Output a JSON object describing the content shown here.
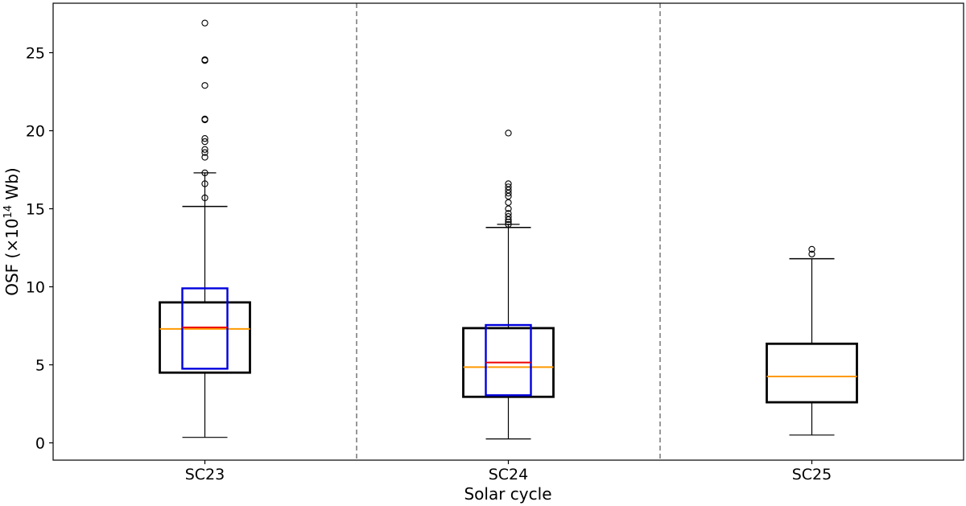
{
  "chart_data": {
    "type": "boxplot",
    "xlabel": "Solar cycle",
    "ylabel": "OSF (×10",
    "ylabel_exponent": "14",
    "ylabel_unit": " Wb)",
    "ylim": [
      -1.1,
      27.8
    ],
    "yticks": [
      0,
      5,
      10,
      15,
      20,
      25
    ],
    "grid": false,
    "separators": "dashed vertical lines between cycles",
    "categories": [
      "SC23",
      "SC24",
      "SC25"
    ],
    "colors": {
      "main_box": "#000000",
      "median": "#ff9900",
      "inner_box": "#0000dd",
      "inner_median": "#ee0000",
      "separator": "#777777"
    },
    "boxes": [
      {
        "label": "SC23",
        "whisker_low": 0.35,
        "q1": 4.5,
        "median": 7.3,
        "q3": 9.0,
        "whisker_high": 15.15,
        "extra_cap": 17.3,
        "outliers": [
          15.7,
          16.6,
          17.3,
          18.3,
          18.6,
          18.8,
          19.3,
          19.5,
          20.7,
          20.75,
          22.9,
          24.5,
          24.55,
          26.9
        ]
      },
      {
        "label": "SC24",
        "whisker_low": 0.25,
        "q1": 2.95,
        "median": 4.85,
        "q3": 7.35,
        "whisker_high": 13.8,
        "extra_cap": 14.0,
        "outliers": [
          14.0,
          14.15,
          14.3,
          14.5,
          14.7,
          15.0,
          15.4,
          15.8,
          16.0,
          16.2,
          16.4,
          16.6,
          19.85
        ]
      },
      {
        "label": "SC25",
        "whisker_low": 0.5,
        "q1": 2.6,
        "median": 4.25,
        "q3": 6.35,
        "whisker_high": 11.8,
        "outliers": [
          12.1,
          12.4
        ]
      }
    ],
    "inner_boxes": [
      {
        "label": "SC23",
        "q1": 4.75,
        "median": 7.4,
        "q3": 9.9
      },
      {
        "label": "SC24",
        "q1": 3.05,
        "median": 5.15,
        "q3": 7.55
      }
    ]
  }
}
